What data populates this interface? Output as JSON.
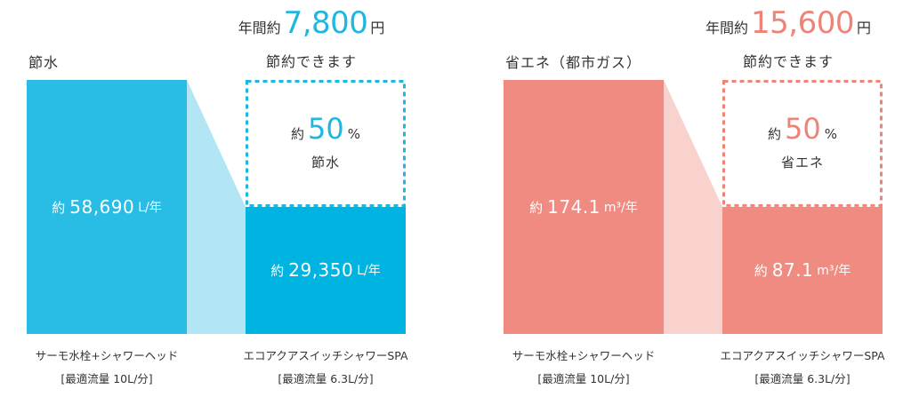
{
  "chart_data": [
    {
      "type": "bar",
      "title": "節水",
      "savings": {
        "prefix": "年間約",
        "amount": "7,800",
        "unit": "円",
        "subtitle": "節約できます"
      },
      "reduction": {
        "prefix": "約",
        "value": "50",
        "unit": "%",
        "label": "節水"
      },
      "categories": [
        {
          "name": "サーモ水栓+シャワーヘッド",
          "note": "[最適流量 10L/分]"
        },
        {
          "name": "エコアクアスイッチシャワーSPA",
          "note": "[最適流量 6.3L/分]"
        }
      ],
      "values": [
        58690,
        29350
      ],
      "value_labels": [
        {
          "prefix": "約",
          "number": "58,690",
          "unit": "L/年"
        },
        {
          "prefix": "約",
          "number": "29,350",
          "unit": "L/年"
        }
      ],
      "ylim": [
        0,
        58690
      ],
      "grid": false,
      "colors": {
        "bar": "#29bde5",
        "bar_highlight": "#00b4e2",
        "connector": "#b3e6f5",
        "accent": "#1eb7e0"
      }
    },
    {
      "type": "bar",
      "title": "省エネ（都市ガス）",
      "savings": {
        "prefix": "年間約",
        "amount": "15,600",
        "unit": "円",
        "subtitle": "節約できます"
      },
      "reduction": {
        "prefix": "約",
        "value": "50",
        "unit": "%",
        "label": "省エネ"
      },
      "categories": [
        {
          "name": "サーモ水栓+シャワーヘッド",
          "note": "[最適流量 10L/分]"
        },
        {
          "name": "エコアクアスイッチシャワーSPA",
          "note": "[最適流量 6.3L/分]"
        }
      ],
      "values": [
        174.1,
        87.1
      ],
      "value_labels": [
        {
          "prefix": "約",
          "number": "174.1",
          "unit": "m³/年"
        },
        {
          "prefix": "約",
          "number": "87.1",
          "unit": "m³/年"
        }
      ],
      "ylim": [
        0,
        174.1
      ],
      "grid": false,
      "colors": {
        "bar": "#ef8b80",
        "bar_highlight": "#ef8b80",
        "connector": "#f9d2cd",
        "accent": "#ee8478"
      }
    }
  ]
}
